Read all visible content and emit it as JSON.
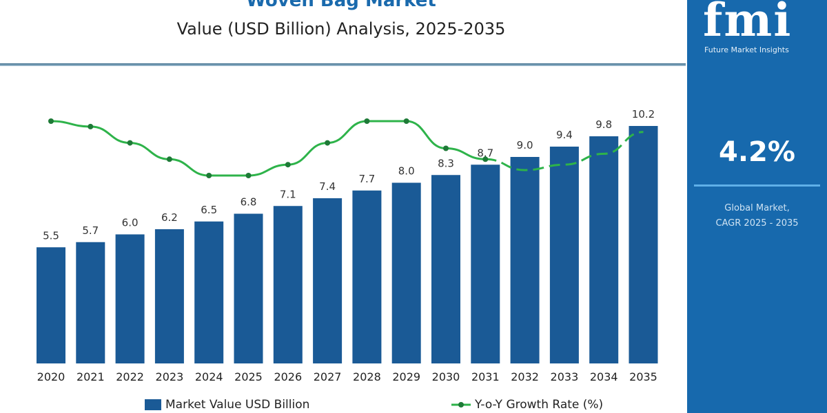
{
  "chart_data": {
    "type": "bar",
    "title": "Woven Bag Market",
    "subtitle": "Value (USD Billion) Analysis, 2025-2035",
    "categories": [
      "2020",
      "2021",
      "2022",
      "2023",
      "2024",
      "2025",
      "2026",
      "2027",
      "2028",
      "2029",
      "2030",
      "2031",
      "2032",
      "2033",
      "2034",
      "2035"
    ],
    "series": [
      {
        "name": "Market Value USD Billion",
        "type": "bar",
        "color": "#1a5a96",
        "values": [
          5.5,
          5.7,
          6.0,
          6.2,
          6.5,
          6.8,
          7.1,
          7.4,
          7.7,
          8.0,
          8.3,
          8.7,
          9.0,
          9.4,
          9.8,
          10.2
        ]
      },
      {
        "name": "Y-o-Y Growth Rate (%)",
        "type": "line",
        "color": "#2eb34a",
        "values": [
          4.6,
          4.5,
          4.2,
          3.9,
          3.6,
          3.6,
          3.8,
          4.2,
          4.6,
          4.6,
          4.1,
          3.9,
          3.7,
          3.8,
          4.0,
          4.4
        ]
      }
    ],
    "data_labels": [
      "5.5",
      "5.7",
      "6.0",
      "6.2",
      "6.5",
      "6.8",
      "7.1",
      "7.4",
      "7.7",
      "8.0",
      "8.3",
      "8.7",
      "9.0",
      "9.4",
      "9.8",
      "10.2"
    ],
    "legend": "bottom",
    "grid": false
  },
  "brand": {
    "logo": "fmi",
    "name": "Future Market Insights",
    "color": "#1769ad"
  },
  "cagr": {
    "value": "4.2%",
    "line1": "Global Market,",
    "line2": "CAGR 2025 - 2035"
  }
}
